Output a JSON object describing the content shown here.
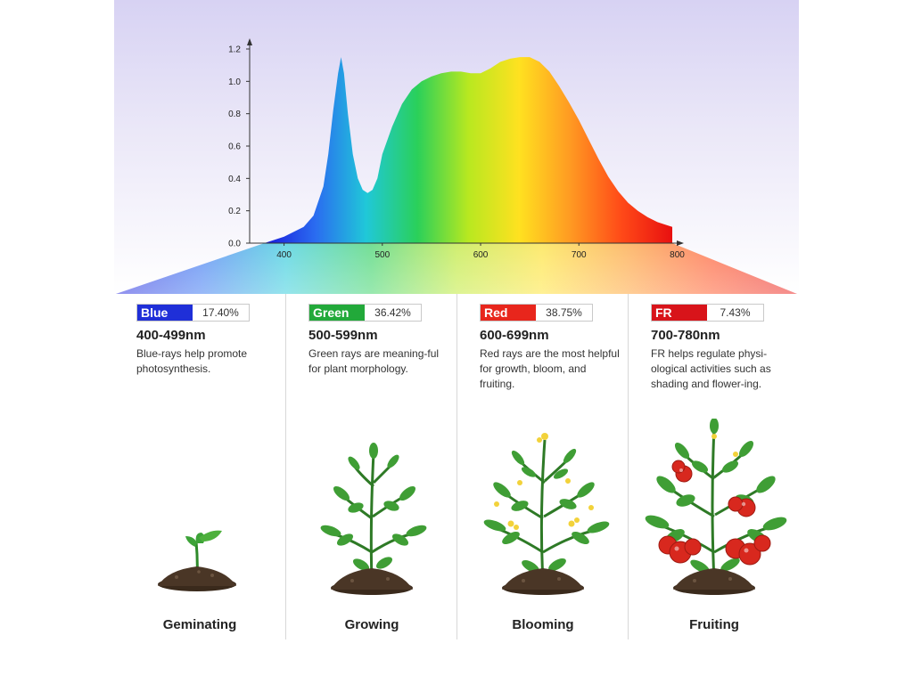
{
  "chart_data": {
    "type": "area",
    "xlabel": "",
    "ylabel": "",
    "xlim": [
      365,
      805
    ],
    "ylim": [
      0,
      1.2
    ],
    "x_ticks": [
      400,
      500,
      600,
      700,
      800
    ],
    "y_ticks": [
      "0.0",
      "0.2",
      "0.4",
      "0.6",
      "0.8",
      "1.0",
      "1.2"
    ],
    "x": [
      380,
      400,
      420,
      430,
      440,
      445,
      450,
      455,
      458,
      461,
      465,
      470,
      475,
      480,
      485,
      490,
      495,
      500,
      510,
      520,
      530,
      540,
      550,
      560,
      570,
      580,
      590,
      600,
      610,
      620,
      630,
      640,
      650,
      660,
      670,
      680,
      690,
      700,
      710,
      720,
      730,
      740,
      750,
      760,
      770,
      780,
      790,
      795
    ],
    "y": [
      0.0,
      0.04,
      0.1,
      0.17,
      0.35,
      0.55,
      0.82,
      1.05,
      1.15,
      1.05,
      0.8,
      0.55,
      0.4,
      0.33,
      0.31,
      0.33,
      0.4,
      0.55,
      0.72,
      0.86,
      0.95,
      1.0,
      1.03,
      1.05,
      1.06,
      1.06,
      1.05,
      1.05,
      1.08,
      1.12,
      1.14,
      1.15,
      1.15,
      1.12,
      1.06,
      0.97,
      0.87,
      0.76,
      0.64,
      0.52,
      0.41,
      0.32,
      0.25,
      0.2,
      0.16,
      0.13,
      0.11,
      0.1
    ],
    "colors": [
      "#1a1adc",
      "#2a6cf0",
      "#20c8d8",
      "#2ad05a",
      "#b8e820",
      "#ffe120",
      "#ff9a22",
      "#ff4a18",
      "#e81010"
    ]
  },
  "sections": [
    {
      "name": "Blue",
      "color": "#1f2fd8",
      "percent": "17.40%",
      "range": "400-499nm",
      "desc": "Blue-rays help promote photosynthesis.",
      "stage": "Geminating",
      "plant_icon": "seedling-icon"
    },
    {
      "name": "Green",
      "color": "#22a93a",
      "percent": "36.42%",
      "range": "500-599nm",
      "desc": "Green rays are meaning-ful for plant morphology.",
      "stage": "Growing",
      "plant_icon": "young-plant-icon"
    },
    {
      "name": "Red",
      "color": "#e8261c",
      "percent": "38.75%",
      "range": "600-699nm",
      "desc": "Red rays are the most helpful for growth, bloom, and fruiting.",
      "stage": "Blooming",
      "plant_icon": "flowering-plant-icon"
    },
    {
      "name": "FR",
      "color": "#d8141a",
      "percent": "7.43%",
      "range": "700-780nm",
      "desc": "FR helps regulate physi-ological activities such as shading and flower-ing.",
      "stage": "Fruiting",
      "plant_icon": "fruiting-plant-icon"
    }
  ]
}
